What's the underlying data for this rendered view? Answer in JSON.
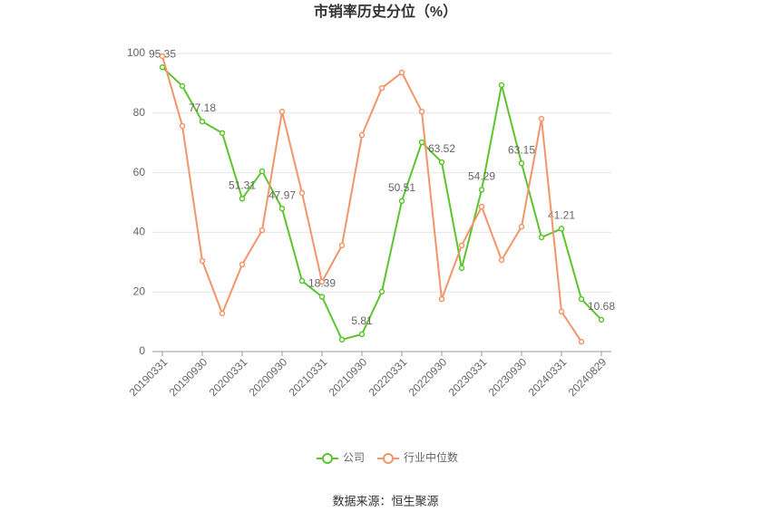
{
  "chart_data": {
    "type": "line",
    "title": "市销率历史分位（%）",
    "source": "数据来源：恒生聚源",
    "categories": [
      "20190331",
      null,
      "20190930",
      null,
      "20200331",
      null,
      "20200930",
      null,
      "20210331",
      null,
      "20210930",
      null,
      "20220331",
      null,
      "20220930",
      null,
      "20230331",
      null,
      "20230930",
      null,
      "20240331",
      null,
      "20240829"
    ],
    "series": [
      {
        "name": "公司",
        "color": "#5cc42e",
        "values": [
          95.35,
          89.1,
          77.18,
          73.3,
          51.31,
          60.5,
          47.97,
          23.7,
          18.39,
          4.0,
          5.81,
          20.1,
          50.51,
          70.2,
          63.52,
          28.0,
          54.29,
          89.4,
          63.15,
          38.3,
          41.21,
          17.6,
          10.68
        ],
        "value_labels": [
          "95.35",
          null,
          "77.18",
          null,
          "51.31",
          null,
          "47.97",
          null,
          "18.39",
          null,
          "5.81",
          null,
          "50.51",
          null,
          "63.52",
          null,
          "54.29",
          null,
          "63.15",
          null,
          "41.21",
          null,
          "10.68"
        ]
      },
      {
        "name": "行业中位数",
        "color": "#f2956b",
        "values": [
          99.1,
          75.7,
          30.4,
          12.8,
          29.2,
          40.7,
          80.5,
          53.2,
          23.4,
          35.6,
          72.6,
          88.4,
          93.6,
          80.5,
          17.6,
          35.6,
          48.6,
          30.7,
          41.9,
          78.1,
          13.4,
          3.3,
          null
        ]
      }
    ],
    "ylim": [
      0,
      100
    ],
    "yticks": [
      0,
      20,
      40,
      60,
      80,
      100
    ],
    "grid": true
  }
}
